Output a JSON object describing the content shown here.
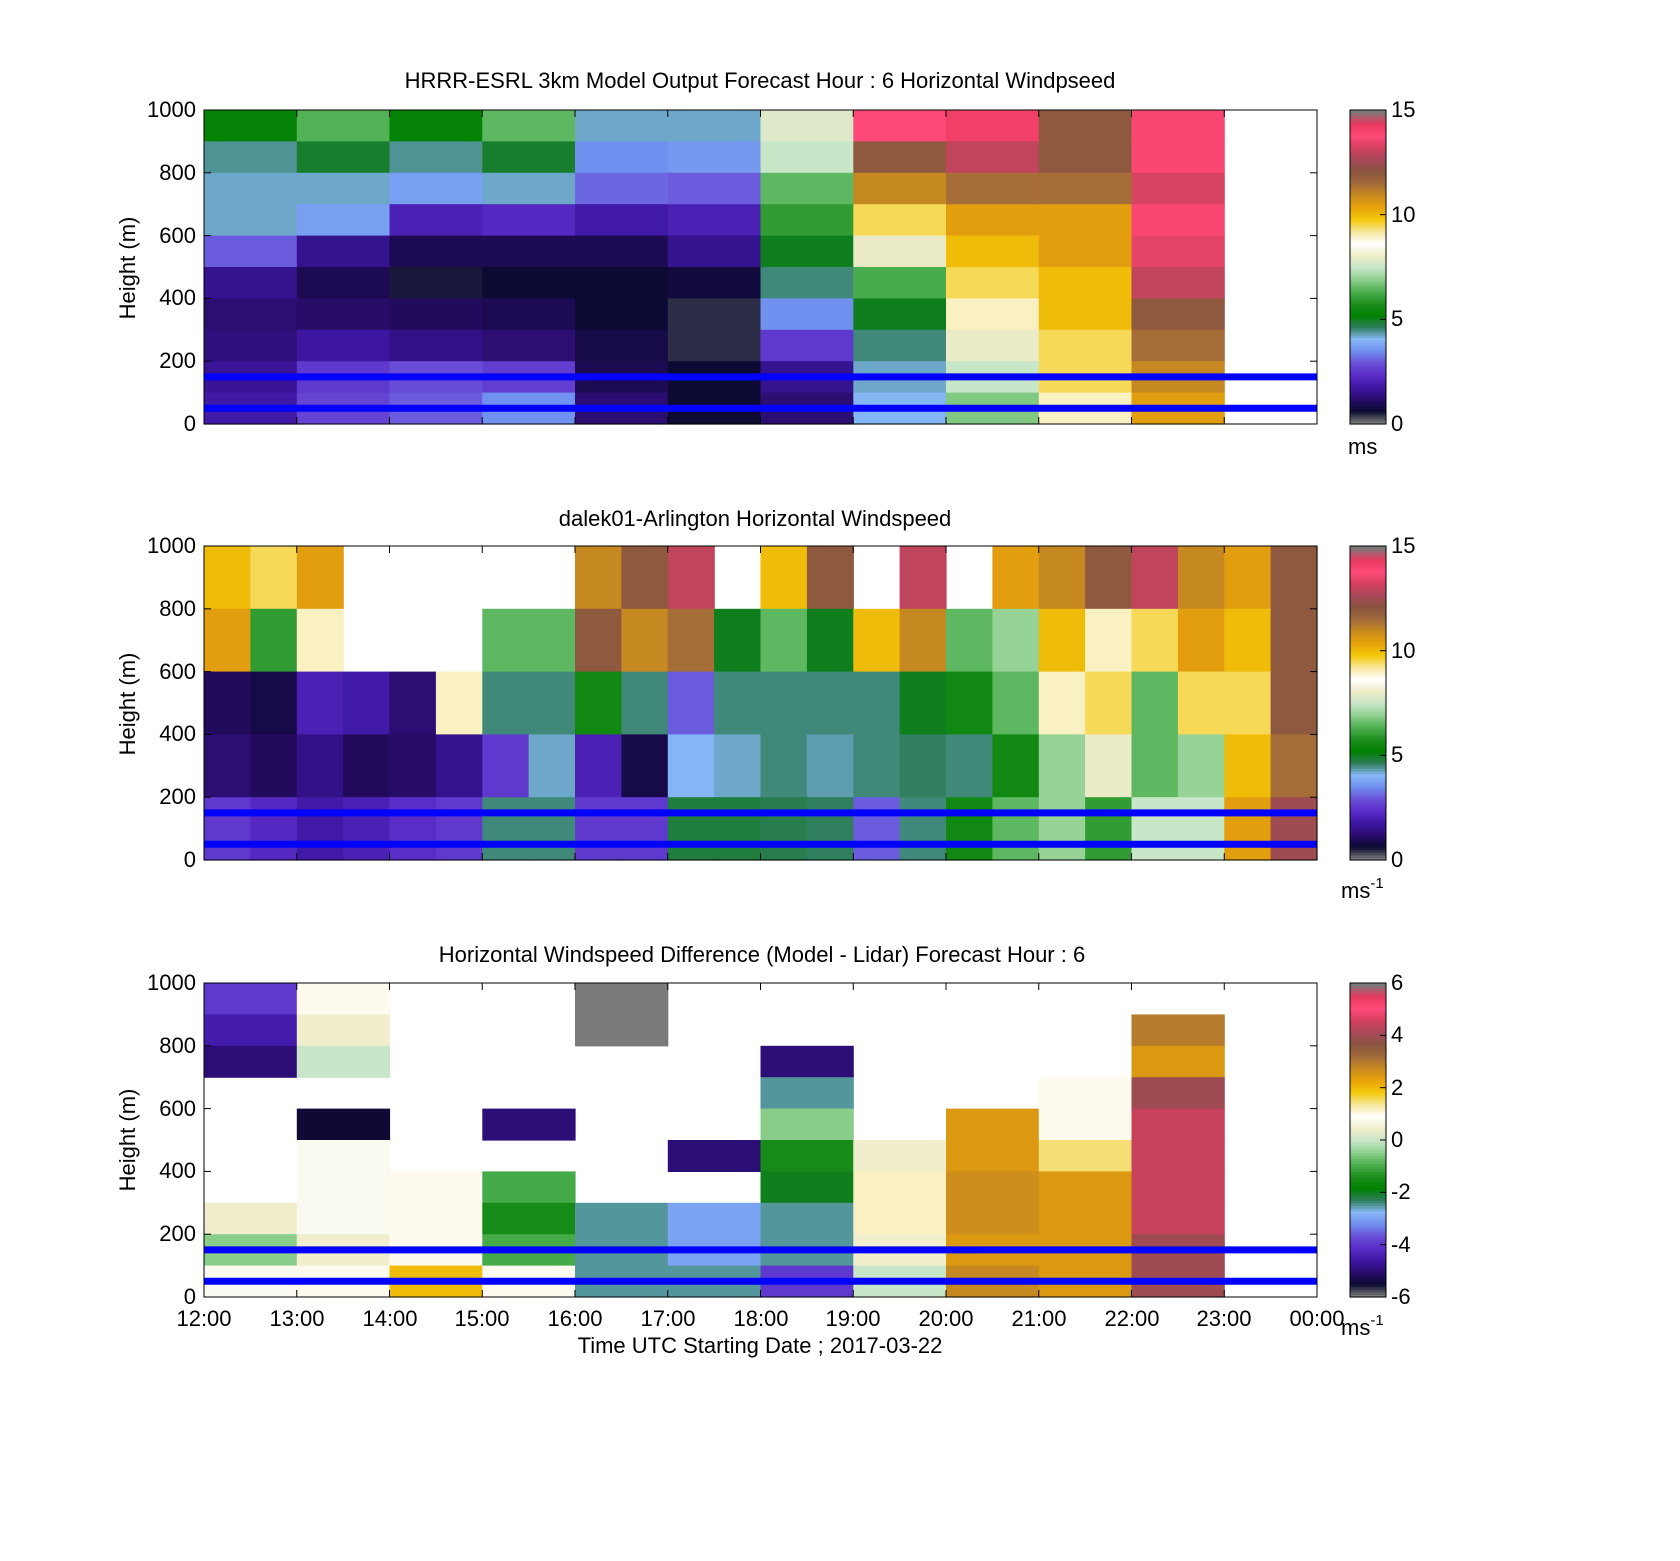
{
  "figure": {
    "xlabel": "Time UTC  Starting Date ; 2017-03-22",
    "x_ticks": [
      "12:00",
      "13:00",
      "14:00",
      "15:00",
      "16:00",
      "17:00",
      "18:00",
      "19:00",
      "20:00",
      "21:00",
      "22:00",
      "23:00",
      "00:00"
    ],
    "colormap": [
      "#7a7a7a",
      "#0b0930",
      "#2a0c6e",
      "#3d16a3",
      "#5a2cc8",
      "#6a50d8",
      "#6f8ef0",
      "#86b8f5",
      "#2e7d5b",
      "#008000",
      "#1f8f1f",
      "#4caf50",
      "#8fd08f",
      "#c8e6c8",
      "#f0ecc8",
      "#ffffff",
      "#f7e79a",
      "#f3c90a",
      "#e8a30a",
      "#c98a1e",
      "#a26b3a",
      "#8a5540",
      "#a8485a",
      "#d4405e",
      "#ff4a79",
      "#e83a5e",
      "#7a7a7a"
    ],
    "colors": {
      "line": "#0000ff"
    }
  },
  "chart_data": [
    {
      "type": "heatmap",
      "title": "HRRR-ESRL 3km Model Output   Forecast Hour : 6 Horizontal Windpseed",
      "xlabel": "",
      "ylabel": "Height (m)",
      "xlim": [
        0,
        12
      ],
      "ylim": [
        0,
        1000
      ],
      "y_ticks": [
        "0",
        "200",
        "400",
        "600",
        "800",
        "1000"
      ],
      "colorbar": {
        "range": [
          0,
          15
        ],
        "ticks": [
          "0",
          "5",
          "10",
          "15"
        ],
        "unit": "ms",
        "unit_sup": ""
      },
      "blue_lines_m": [
        150,
        50
      ],
      "x": [
        0,
        1,
        2,
        3,
        4,
        5,
        6,
        7,
        8,
        9,
        10
      ],
      "height_levels_m": [
        950,
        850,
        750,
        650,
        550,
        450,
        350,
        250,
        150,
        50
      ],
      "values": [
        [
          5.3,
          6.4,
          5.3,
          6.5,
          4.2,
          4.2,
          7.8,
          13.8,
          14.2,
          12.0,
          14.0
        ],
        [
          4.4,
          4.9,
          4.4,
          4.9,
          3.5,
          3.6,
          7.5,
          12.0,
          13.0,
          12.0,
          14.0
        ],
        [
          4.2,
          4.2,
          3.7,
          4.2,
          3.1,
          3.0,
          6.5,
          11.0,
          11.5,
          11.5,
          14.5
        ],
        [
          4.2,
          3.7,
          2.0,
          2.2,
          1.8,
          2.0,
          6.0,
          9.5,
          10.5,
          10.5,
          14.0
        ],
        [
          3.0,
          1.5,
          0.9,
          0.9,
          0.9,
          1.5,
          5.0,
          8.0,
          10.0,
          10.5,
          13.5
        ],
        [
          1.5,
          0.9,
          0.5,
          0.6,
          0.6,
          0.7,
          4.5,
          6.3,
          9.5,
          10.0,
          13.0
        ],
        [
          1.2,
          1.1,
          1.0,
          0.9,
          0.6,
          0.4,
          3.5,
          5.0,
          9.0,
          10.0,
          12.0
        ],
        [
          1.3,
          1.7,
          1.4,
          1.2,
          0.8,
          0.4,
          2.5,
          4.5,
          8.0,
          9.5,
          11.5
        ],
        [
          1.6,
          2.5,
          2.8,
          2.6,
          0.9,
          0.6,
          1.5,
          4.2,
          7.5,
          9.5,
          11.0
        ],
        [
          1.8,
          2.7,
          3.0,
          3.5,
          1.2,
          0.6,
          1.2,
          4.0,
          6.8,
          9.0,
          10.5
        ]
      ]
    },
    {
      "type": "heatmap",
      "title": "dalek01-Arlington  Horizontal Windspeed",
      "xlabel": "",
      "ylabel": "Height (m)",
      "xlim": [
        0,
        12
      ],
      "ylim": [
        0,
        1000
      ],
      "y_ticks": [
        "0",
        "200",
        "400",
        "600",
        "800",
        "1000"
      ],
      "colorbar": {
        "range": [
          0,
          15
        ],
        "ticks": [
          "0",
          "5",
          "10",
          "15"
        ],
        "unit": "ms",
        "unit_sup": "-1"
      },
      "blue_lines_m": [
        150,
        50
      ],
      "x": [
        0,
        0.5,
        1,
        1.5,
        2,
        2.5,
        3,
        3.5,
        4,
        4.5,
        5,
        5.5,
        6,
        6.5,
        7,
        7.5,
        8,
        8.5,
        9,
        9.5,
        10,
        10.5,
        11,
        11.5
      ],
      "height_levels_m": [
        900,
        700,
        500,
        300,
        100
      ],
      "values": [
        [
          10.0,
          9.5,
          10.5,
          null,
          null,
          null,
          null,
          null,
          11.0,
          12.0,
          13.0,
          null,
          10.0,
          12.0,
          null,
          13.0,
          null,
          10.5,
          11.0,
          12.0,
          13.0,
          11.0,
          10.5,
          12.0
        ],
        [
          10.5,
          6.0,
          9.0,
          null,
          null,
          null,
          6.5,
          6.5,
          12.0,
          11.0,
          11.5,
          5.0,
          6.5,
          5.0,
          10.0,
          11.0,
          6.5,
          7.0,
          10.0,
          9.0,
          9.5,
          10.5,
          10.0,
          12.0
        ],
        [
          1.0,
          0.8,
          2.0,
          1.8,
          1.2,
          9.0,
          4.5,
          4.5,
          5.5,
          4.5,
          3.0,
          4.5,
          4.5,
          4.5,
          4.5,
          5.0,
          5.5,
          6.5,
          9.0,
          9.5,
          6.5,
          9.5,
          9.5,
          12.0
        ],
        [
          1.2,
          1.0,
          1.4,
          1.0,
          1.1,
          1.5,
          2.5,
          4.2,
          2.0,
          0.8,
          4.0,
          4.2,
          4.5,
          4.3,
          4.5,
          4.6,
          4.5,
          5.5,
          7.0,
          8.0,
          6.5,
          7.0,
          10.0,
          11.5
        ],
        [
          2.5,
          2.2,
          1.8,
          2.0,
          2.3,
          2.5,
          4.5,
          4.5,
          2.5,
          2.5,
          4.8,
          4.8,
          4.7,
          4.6,
          3.0,
          4.5,
          5.5,
          6.5,
          7.0,
          6.0,
          7.5,
          7.5,
          10.5,
          12.5
        ]
      ]
    },
    {
      "type": "heatmap",
      "title": "Horizontal Windspeed Difference (Model - Lidar) Forecast Hour : 6",
      "xlabel": "Time UTC  Starting Date ; 2017-03-22",
      "ylabel": "Height (m)",
      "xlim": [
        0,
        12
      ],
      "ylim": [
        0,
        1000
      ],
      "y_ticks": [
        "0",
        "200",
        "400",
        "600",
        "800",
        "1000"
      ],
      "colorbar": {
        "range": [
          -6,
          6
        ],
        "ticks": [
          "-6",
          "-4",
          "-2",
          "0",
          "2",
          "4",
          "6"
        ],
        "unit": "ms",
        "unit_sup": "-1"
      },
      "blue_lines_m": [
        150,
        50
      ],
      "x": [
        0,
        1,
        2,
        3,
        4,
        5,
        6,
        7,
        8,
        9,
        10
      ],
      "height_levels_m": [
        950,
        850,
        750,
        650,
        550,
        450,
        350,
        250,
        150,
        50
      ],
      "values": [
        [
          -4.0,
          1.0,
          null,
          null,
          -6.0,
          null,
          null,
          null,
          null,
          null,
          null
        ],
        [
          -4.5,
          0.5,
          null,
          null,
          -6.0,
          null,
          null,
          null,
          null,
          null,
          3.0
        ],
        [
          -5.0,
          0.0,
          null,
          null,
          null,
          null,
          -5.0,
          null,
          null,
          null,
          2.5
        ],
        [
          null,
          null,
          null,
          null,
          null,
          null,
          -2.5,
          null,
          null,
          1.0,
          4.0
        ],
        [
          null,
          -5.5,
          null,
          -5.0,
          null,
          null,
          -0.5,
          null,
          2.5,
          1.0,
          4.5
        ],
        [
          null,
          0.8,
          null,
          null,
          null,
          -5.0,
          -1.5,
          0.5,
          2.5,
          1.5,
          4.5
        ],
        [
          null,
          0.8,
          1.0,
          -1.0,
          null,
          null,
          -2.0,
          1.2,
          2.7,
          2.5,
          4.5
        ],
        [
          0.5,
          0.8,
          1.0,
          -1.5,
          -2.5,
          -3.0,
          -2.5,
          1.2,
          2.7,
          2.5,
          4.5
        ],
        [
          -0.5,
          0.5,
          1.0,
          -1.0,
          -2.5,
          -3.0,
          -2.5,
          0.5,
          2.5,
          2.5,
          4.0
        ],
        [
          0.8,
          1.0,
          2.0,
          1.0,
          -2.5,
          -2.5,
          -4.0,
          0.0,
          2.8,
          2.5,
          4.0
        ]
      ]
    }
  ]
}
